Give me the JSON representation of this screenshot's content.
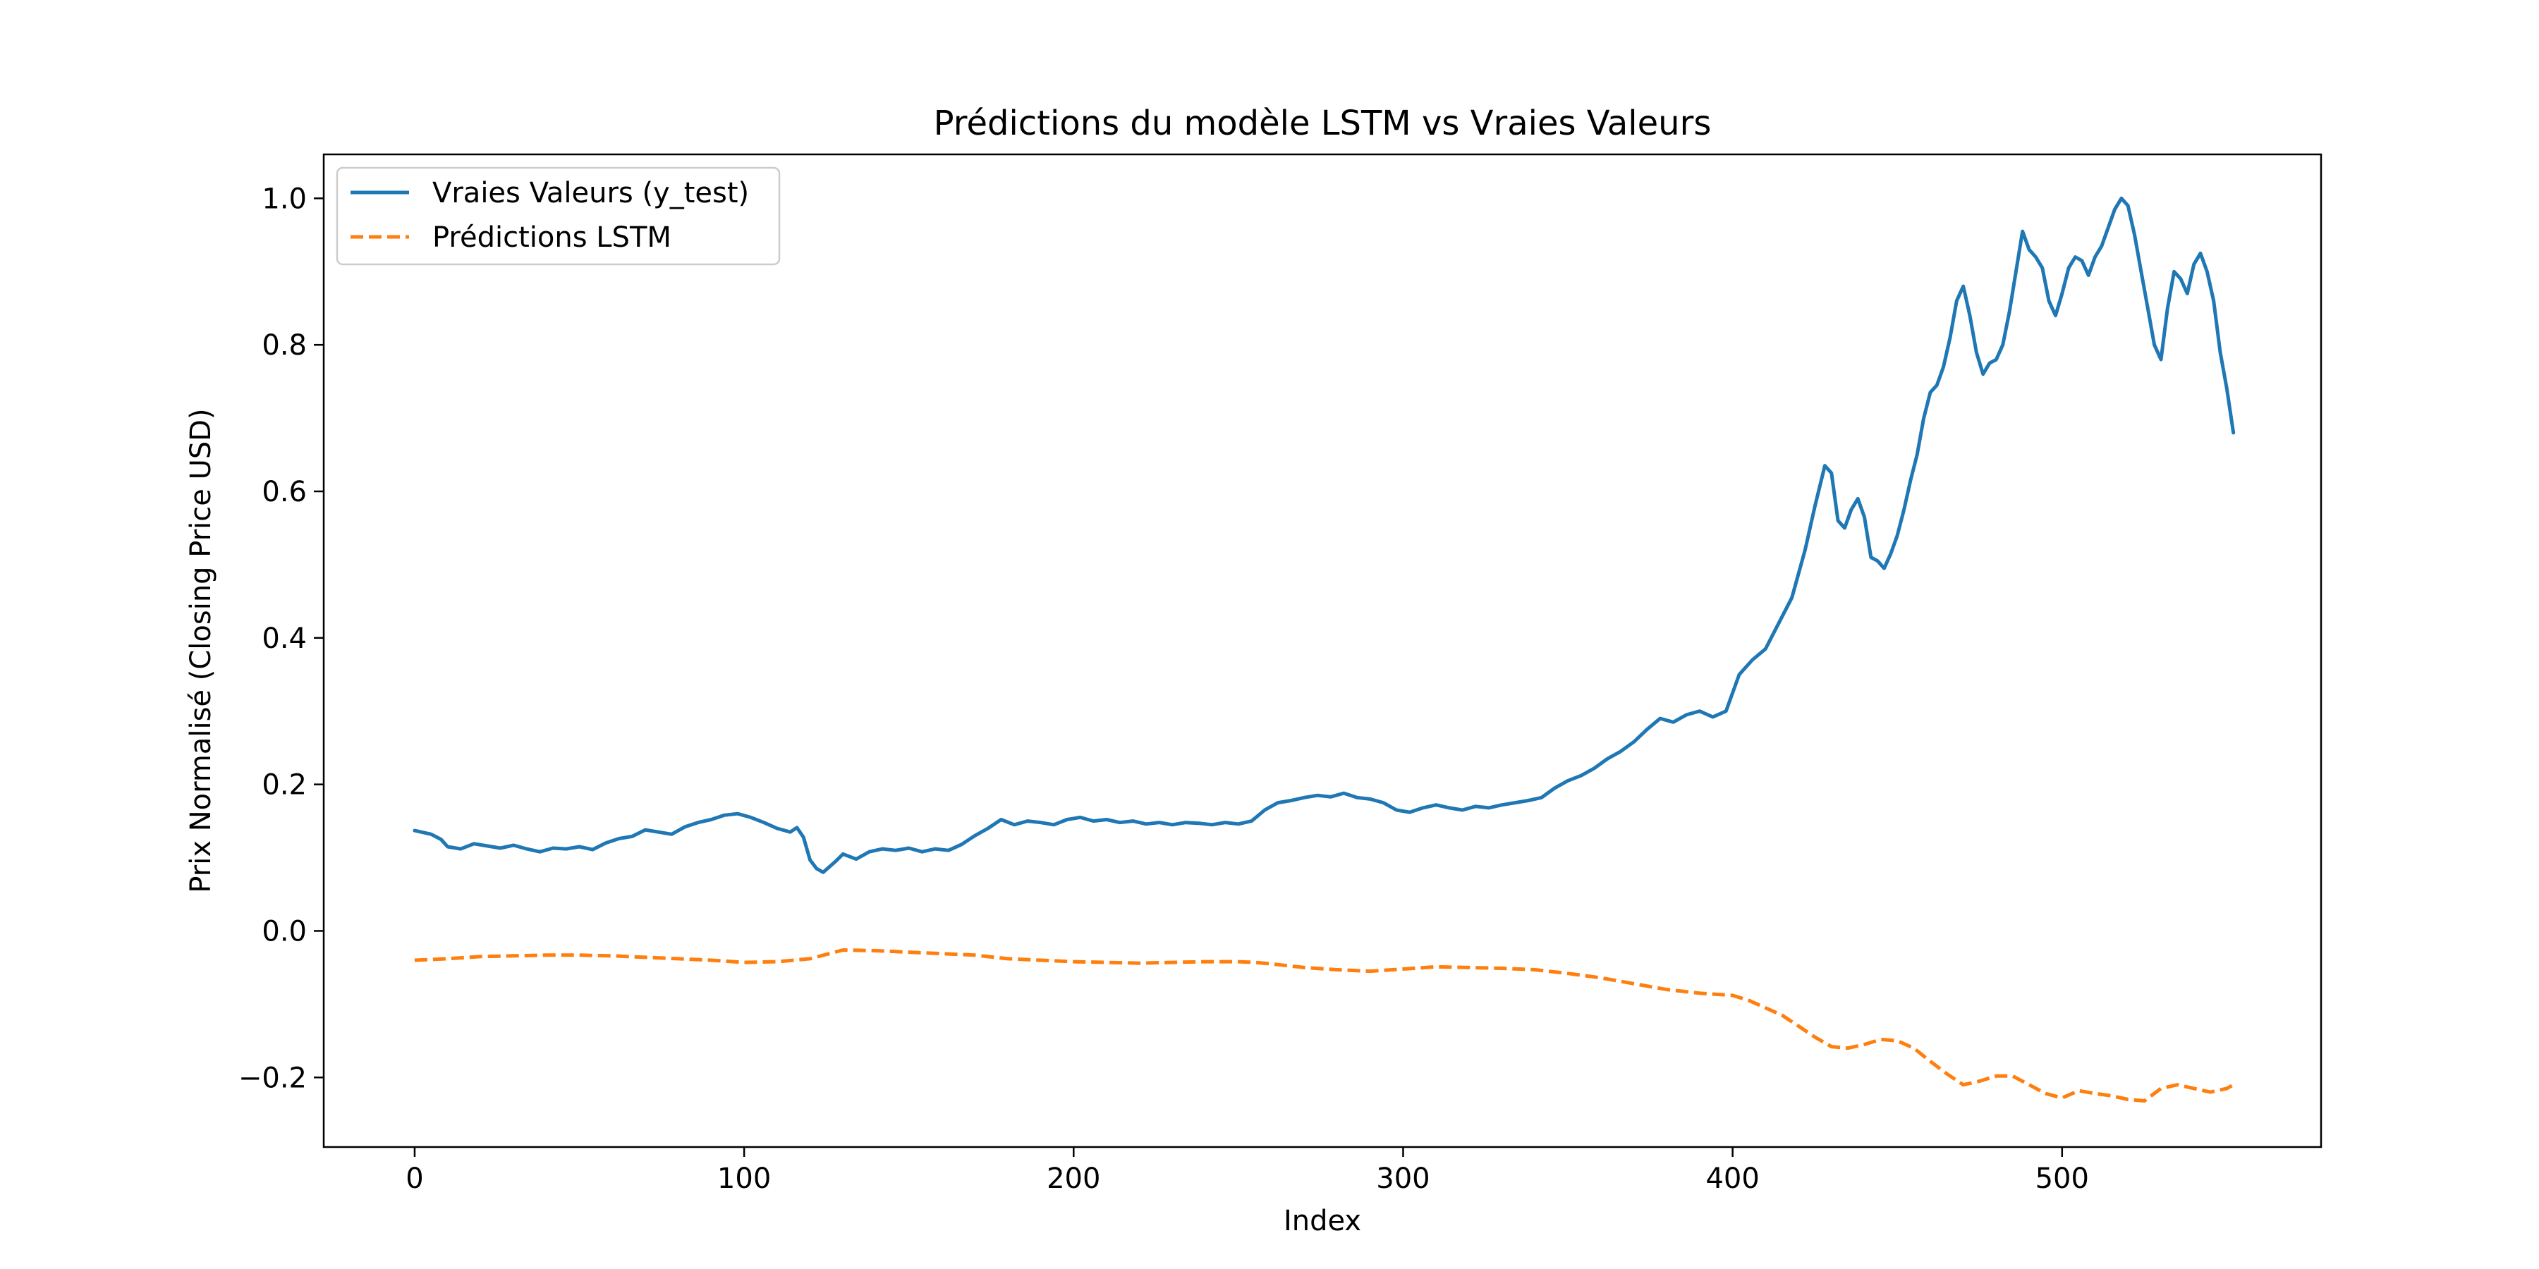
{
  "chart_data": {
    "type": "line",
    "title": "Prédictions du modèle LSTM vs Vraies Valeurs",
    "xlabel": "Index",
    "ylabel": "Prix Normalisé (Closing Price USD)",
    "xlim": [
      -27.6,
      578.6
    ],
    "ylim": [
      -0.295,
      1.06
    ],
    "xticks": [
      0,
      100,
      200,
      300,
      400,
      500
    ],
    "yticks": [
      -0.2,
      0.0,
      0.2,
      0.4,
      0.6,
      0.8,
      1.0
    ],
    "ytick_labels": [
      "−0.2",
      "0.0",
      "0.2",
      "0.4",
      "0.6",
      "0.8",
      "1.0"
    ],
    "grid": false,
    "legend_position": "top-left",
    "series": [
      {
        "name": "Vraies Valeurs (y_test)",
        "color": "#1f77b4",
        "style": "solid",
        "points": [
          [
            0,
            0.137
          ],
          [
            5,
            0.132
          ],
          [
            8,
            0.125
          ],
          [
            10,
            0.115
          ],
          [
            14,
            0.112
          ],
          [
            18,
            0.119
          ],
          [
            22,
            0.116
          ],
          [
            26,
            0.113
          ],
          [
            30,
            0.117
          ],
          [
            34,
            0.112
          ],
          [
            38,
            0.108
          ],
          [
            42,
            0.113
          ],
          [
            46,
            0.112
          ],
          [
            50,
            0.115
          ],
          [
            54,
            0.111
          ],
          [
            58,
            0.12
          ],
          [
            62,
            0.126
          ],
          [
            66,
            0.129
          ],
          [
            70,
            0.138
          ],
          [
            74,
            0.135
          ],
          [
            78,
            0.132
          ],
          [
            82,
            0.142
          ],
          [
            86,
            0.148
          ],
          [
            90,
            0.152
          ],
          [
            94,
            0.158
          ],
          [
            98,
            0.16
          ],
          [
            102,
            0.155
          ],
          [
            106,
            0.148
          ],
          [
            110,
            0.14
          ],
          [
            114,
            0.135
          ],
          [
            116,
            0.141
          ],
          [
            118,
            0.128
          ],
          [
            120,
            0.097
          ],
          [
            122,
            0.085
          ],
          [
            124,
            0.08
          ],
          [
            126,
            0.088
          ],
          [
            128,
            0.096
          ],
          [
            130,
            0.105
          ],
          [
            134,
            0.098
          ],
          [
            138,
            0.108
          ],
          [
            142,
            0.112
          ],
          [
            146,
            0.11
          ],
          [
            150,
            0.113
          ],
          [
            154,
            0.108
          ],
          [
            158,
            0.112
          ],
          [
            162,
            0.11
          ],
          [
            166,
            0.118
          ],
          [
            170,
            0.13
          ],
          [
            174,
            0.14
          ],
          [
            178,
            0.152
          ],
          [
            182,
            0.145
          ],
          [
            186,
            0.15
          ],
          [
            190,
            0.148
          ],
          [
            194,
            0.145
          ],
          [
            198,
            0.152
          ],
          [
            202,
            0.155
          ],
          [
            206,
            0.15
          ],
          [
            210,
            0.152
          ],
          [
            214,
            0.148
          ],
          [
            218,
            0.15
          ],
          [
            222,
            0.146
          ],
          [
            226,
            0.148
          ],
          [
            230,
            0.145
          ],
          [
            234,
            0.148
          ],
          [
            238,
            0.147
          ],
          [
            242,
            0.145
          ],
          [
            246,
            0.148
          ],
          [
            250,
            0.146
          ],
          [
            254,
            0.15
          ],
          [
            258,
            0.165
          ],
          [
            262,
            0.175
          ],
          [
            266,
            0.178
          ],
          [
            270,
            0.182
          ],
          [
            274,
            0.185
          ],
          [
            278,
            0.183
          ],
          [
            282,
            0.188
          ],
          [
            286,
            0.182
          ],
          [
            290,
            0.18
          ],
          [
            294,
            0.175
          ],
          [
            298,
            0.165
          ],
          [
            302,
            0.162
          ],
          [
            306,
            0.168
          ],
          [
            310,
            0.172
          ],
          [
            314,
            0.168
          ],
          [
            318,
            0.165
          ],
          [
            322,
            0.17
          ],
          [
            326,
            0.168
          ],
          [
            330,
            0.172
          ],
          [
            334,
            0.175
          ],
          [
            338,
            0.178
          ],
          [
            342,
            0.182
          ],
          [
            346,
            0.195
          ],
          [
            350,
            0.205
          ],
          [
            354,
            0.212
          ],
          [
            358,
            0.222
          ],
          [
            362,
            0.235
          ],
          [
            366,
            0.245
          ],
          [
            370,
            0.258
          ],
          [
            374,
            0.275
          ],
          [
            378,
            0.29
          ],
          [
            382,
            0.285
          ],
          [
            386,
            0.295
          ],
          [
            390,
            0.3
          ],
          [
            394,
            0.292
          ],
          [
            398,
            0.3
          ],
          [
            402,
            0.35
          ],
          [
            406,
            0.37
          ],
          [
            410,
            0.385
          ],
          [
            414,
            0.42
          ],
          [
            418,
            0.455
          ],
          [
            422,
            0.52
          ],
          [
            425,
            0.58
          ],
          [
            428,
            0.635
          ],
          [
            430,
            0.625
          ],
          [
            432,
            0.56
          ],
          [
            434,
            0.55
          ],
          [
            436,
            0.575
          ],
          [
            438,
            0.59
          ],
          [
            440,
            0.565
          ],
          [
            442,
            0.51
          ],
          [
            444,
            0.505
          ],
          [
            446,
            0.495
          ],
          [
            448,
            0.515
          ],
          [
            450,
            0.54
          ],
          [
            452,
            0.575
          ],
          [
            454,
            0.615
          ],
          [
            456,
            0.65
          ],
          [
            458,
            0.7
          ],
          [
            460,
            0.735
          ],
          [
            462,
            0.745
          ],
          [
            464,
            0.77
          ],
          [
            466,
            0.81
          ],
          [
            468,
            0.86
          ],
          [
            470,
            0.88
          ],
          [
            472,
            0.84
          ],
          [
            474,
            0.79
          ],
          [
            476,
            0.76
          ],
          [
            478,
            0.775
          ],
          [
            480,
            0.78
          ],
          [
            482,
            0.8
          ],
          [
            484,
            0.845
          ],
          [
            486,
            0.9
          ],
          [
            488,
            0.955
          ],
          [
            490,
            0.93
          ],
          [
            492,
            0.92
          ],
          [
            494,
            0.905
          ],
          [
            496,
            0.86
          ],
          [
            498,
            0.84
          ],
          [
            500,
            0.87
          ],
          [
            502,
            0.905
          ],
          [
            504,
            0.92
          ],
          [
            506,
            0.915
          ],
          [
            508,
            0.895
          ],
          [
            510,
            0.92
          ],
          [
            512,
            0.935
          ],
          [
            514,
            0.96
          ],
          [
            516,
            0.985
          ],
          [
            518,
            1.0
          ],
          [
            520,
            0.99
          ],
          [
            522,
            0.95
          ],
          [
            524,
            0.9
          ],
          [
            526,
            0.85
          ],
          [
            528,
            0.8
          ],
          [
            530,
            0.78
          ],
          [
            532,
            0.85
          ],
          [
            534,
            0.9
          ],
          [
            536,
            0.89
          ],
          [
            538,
            0.87
          ],
          [
            540,
            0.91
          ],
          [
            542,
            0.925
          ],
          [
            544,
            0.9
          ],
          [
            546,
            0.86
          ],
          [
            548,
            0.79
          ],
          [
            550,
            0.74
          ],
          [
            552,
            0.68
          ]
        ]
      },
      {
        "name": "Prédictions LSTM",
        "color": "#ff7f0e",
        "style": "dashed",
        "points": [
          [
            0,
            -0.04
          ],
          [
            10,
            -0.038
          ],
          [
            20,
            -0.035
          ],
          [
            30,
            -0.034
          ],
          [
            40,
            -0.033
          ],
          [
            50,
            -0.033
          ],
          [
            60,
            -0.034
          ],
          [
            70,
            -0.036
          ],
          [
            80,
            -0.038
          ],
          [
            90,
            -0.04
          ],
          [
            100,
            -0.043
          ],
          [
            110,
            -0.042
          ],
          [
            120,
            -0.038
          ],
          [
            125,
            -0.032
          ],
          [
            130,
            -0.026
          ],
          [
            140,
            -0.027
          ],
          [
            150,
            -0.029
          ],
          [
            160,
            -0.031
          ],
          [
            170,
            -0.033
          ],
          [
            180,
            -0.038
          ],
          [
            190,
            -0.04
          ],
          [
            200,
            -0.042
          ],
          [
            210,
            -0.043
          ],
          [
            220,
            -0.044
          ],
          [
            230,
            -0.043
          ],
          [
            240,
            -0.042
          ],
          [
            250,
            -0.042
          ],
          [
            255,
            -0.043
          ],
          [
            260,
            -0.045
          ],
          [
            270,
            -0.05
          ],
          [
            280,
            -0.053
          ],
          [
            290,
            -0.055
          ],
          [
            300,
            -0.052
          ],
          [
            310,
            -0.049
          ],
          [
            320,
            -0.05
          ],
          [
            330,
            -0.051
          ],
          [
            340,
            -0.053
          ],
          [
            350,
            -0.058
          ],
          [
            360,
            -0.064
          ],
          [
            370,
            -0.072
          ],
          [
            380,
            -0.08
          ],
          [
            390,
            -0.085
          ],
          [
            400,
            -0.088
          ],
          [
            405,
            -0.095
          ],
          [
            410,
            -0.105
          ],
          [
            415,
            -0.115
          ],
          [
            420,
            -0.13
          ],
          [
            425,
            -0.145
          ],
          [
            430,
            -0.158
          ],
          [
            435,
            -0.16
          ],
          [
            440,
            -0.155
          ],
          [
            445,
            -0.148
          ],
          [
            450,
            -0.15
          ],
          [
            455,
            -0.16
          ],
          [
            460,
            -0.178
          ],
          [
            465,
            -0.195
          ],
          [
            470,
            -0.21
          ],
          [
            475,
            -0.205
          ],
          [
            480,
            -0.198
          ],
          [
            485,
            -0.198
          ],
          [
            490,
            -0.21
          ],
          [
            495,
            -0.222
          ],
          [
            500,
            -0.228
          ],
          [
            505,
            -0.218
          ],
          [
            510,
            -0.222
          ],
          [
            515,
            -0.225
          ],
          [
            520,
            -0.23
          ],
          [
            525,
            -0.232
          ],
          [
            530,
            -0.215
          ],
          [
            535,
            -0.21
          ],
          [
            540,
            -0.215
          ],
          [
            545,
            -0.22
          ],
          [
            550,
            -0.215
          ],
          [
            552,
            -0.21
          ]
        ]
      }
    ]
  }
}
